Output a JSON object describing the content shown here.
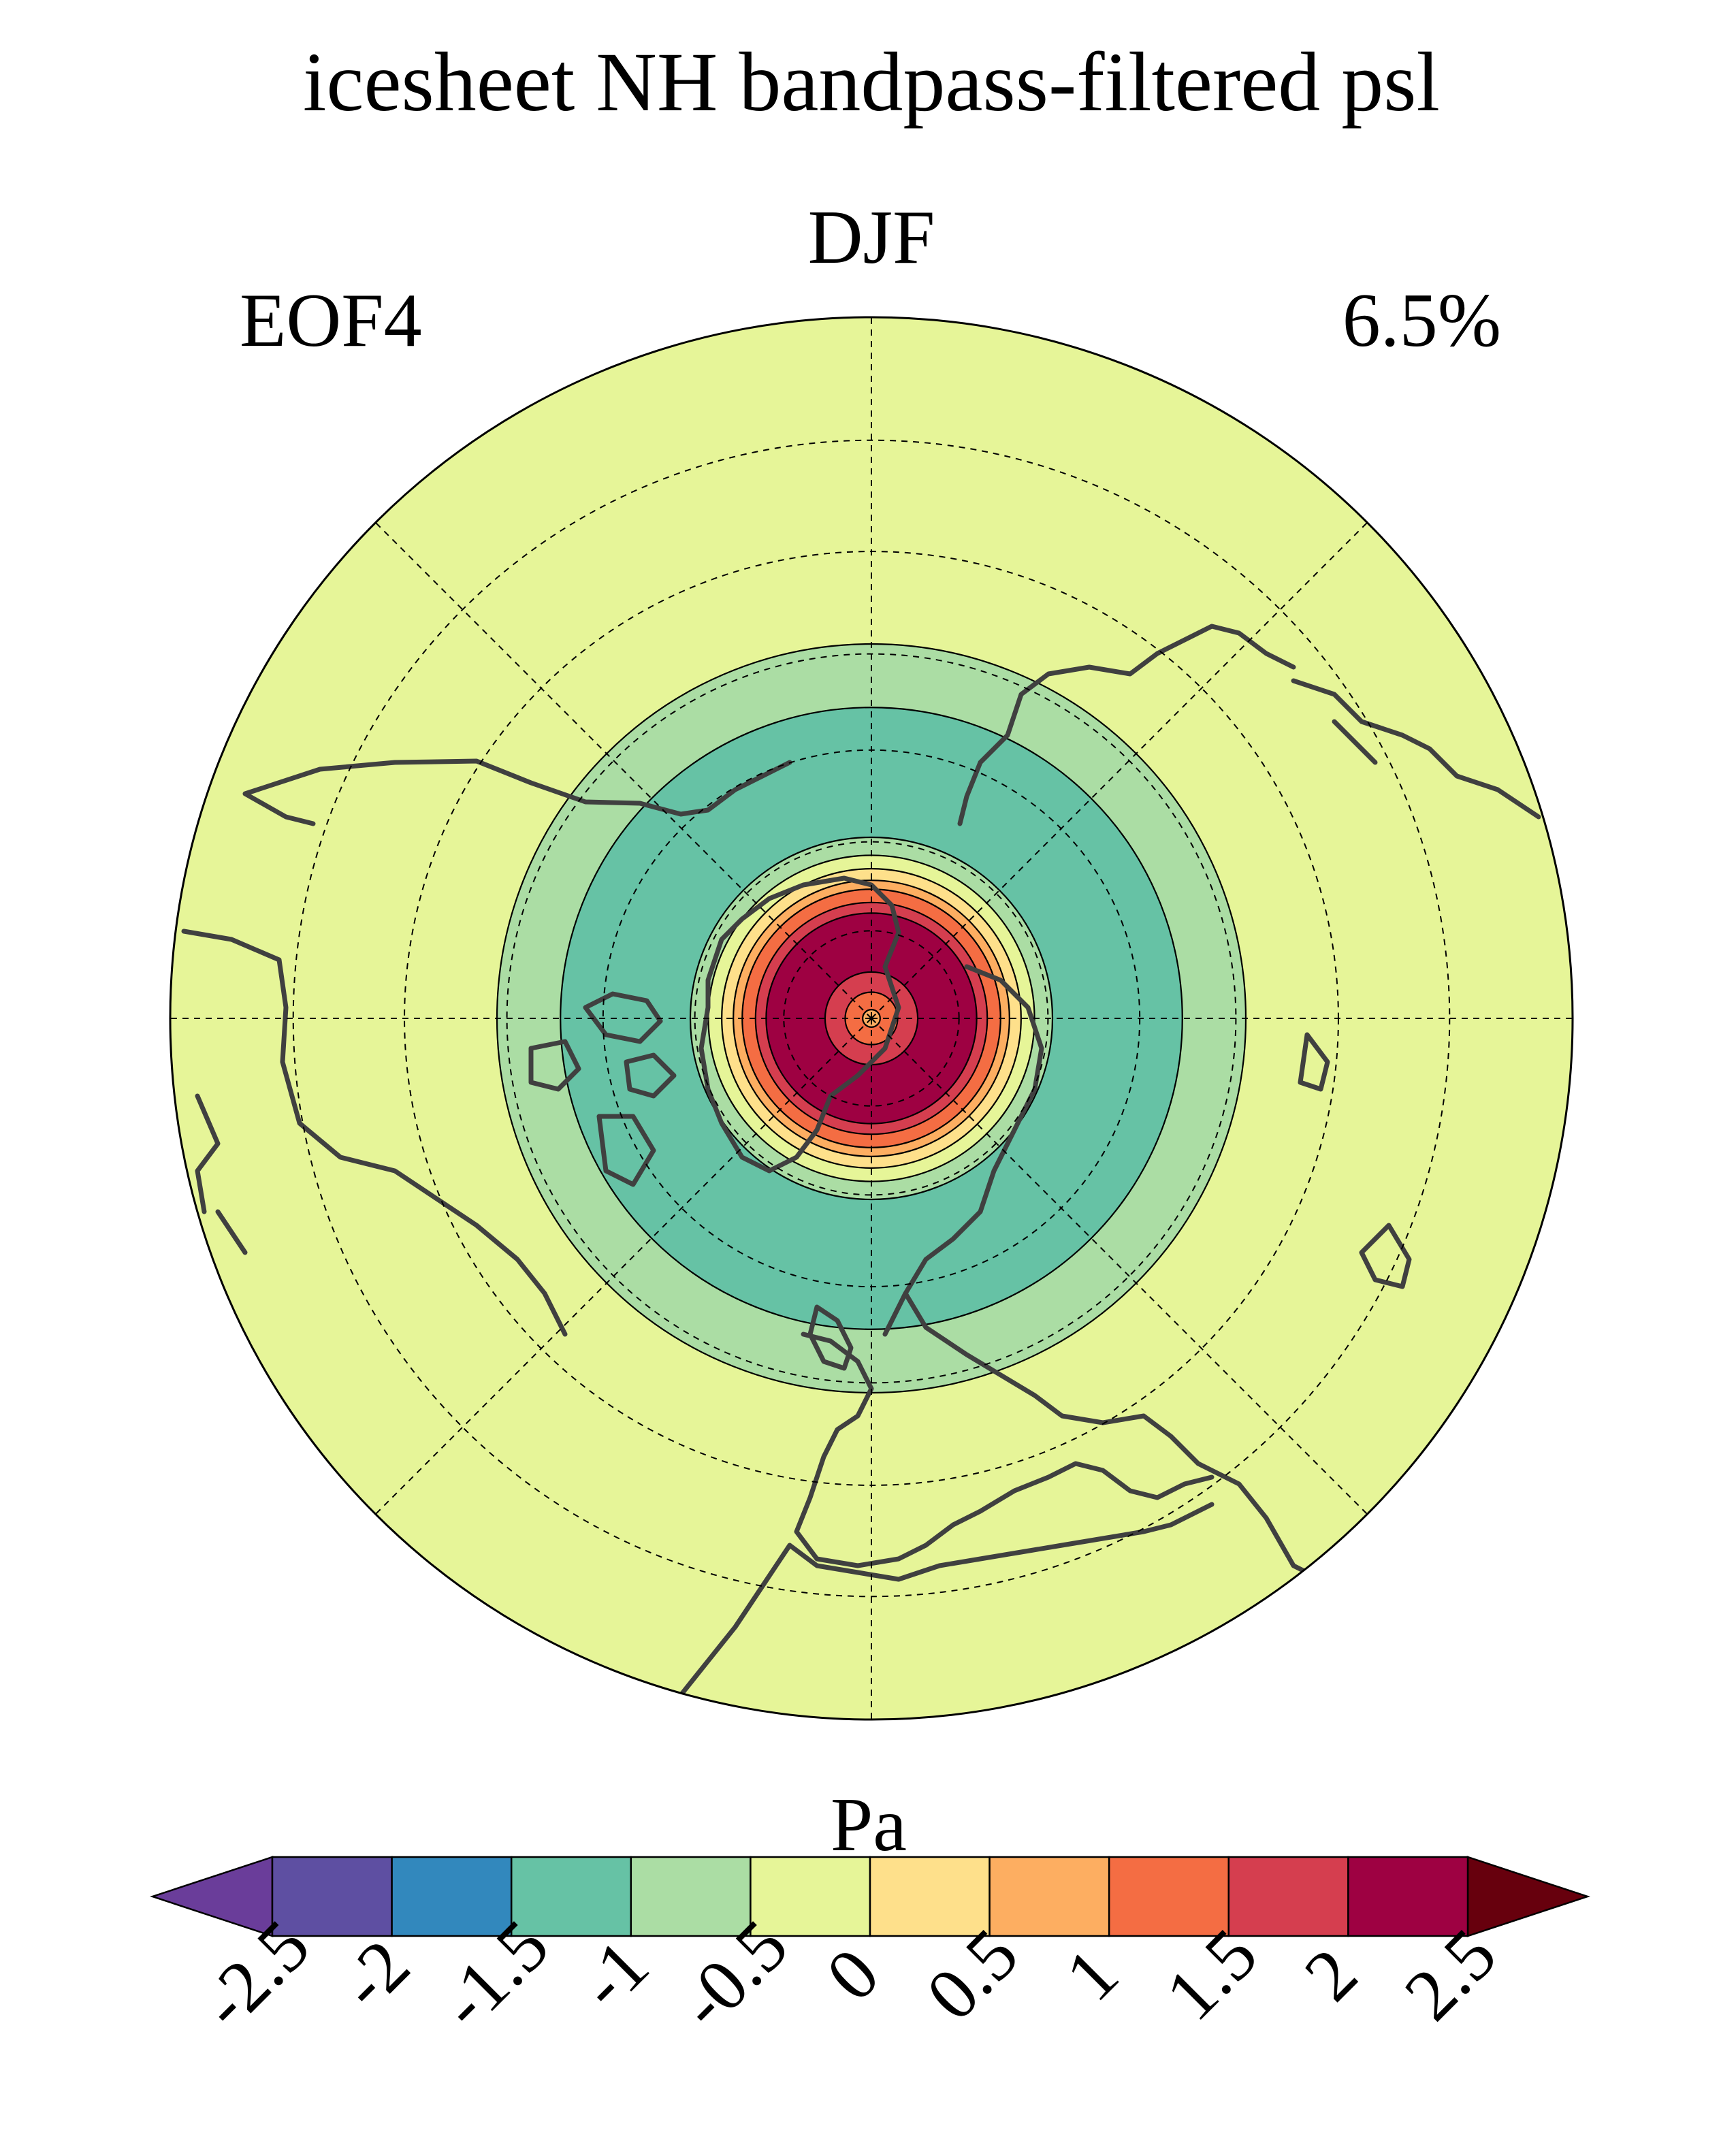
{
  "chart_data": {
    "type": "heatmap",
    "projection": "north-polar-stereographic",
    "title": "icesheet NH bandpass-filtered psl",
    "season": "DJF",
    "mode_label": "EOF4",
    "variance_explained": "6.5%",
    "units": "Pa",
    "lat_range": [
      20,
      90
    ],
    "graticule": {
      "parallels": [
        30,
        40,
        50,
        60,
        70,
        80
      ],
      "meridians": [
        0,
        45,
        90,
        135,
        180,
        225,
        270,
        315
      ]
    },
    "pattern": {
      "description": "zonally symmetric bands",
      "bands": [
        {
          "lat_from": 89.0,
          "lat_to": 90.0,
          "value": 0.75
        },
        {
          "lat_from": 87.0,
          "lat_to": 89.0,
          "value": 1.25
        },
        {
          "lat_from": 84.7,
          "lat_to": 87.0,
          "value": 1.75
        },
        {
          "lat_from": 78.0,
          "lat_to": 84.7,
          "value": 2.25
        },
        {
          "lat_from": 76.8,
          "lat_to": 78.0,
          "value": 1.75
        },
        {
          "lat_from": 75.3,
          "lat_to": 76.8,
          "value": 1.25
        },
        {
          "lat_from": 74.3,
          "lat_to": 75.3,
          "value": 0.75
        },
        {
          "lat_from": 73.0,
          "lat_to": 74.3,
          "value": 0.25
        },
        {
          "lat_from": 71.5,
          "lat_to": 73.0,
          "value": -0.25
        },
        {
          "lat_from": 69.5,
          "lat_to": 71.5,
          "value": -0.75
        },
        {
          "lat_from": 55.5,
          "lat_to": 69.5,
          "value": -1.25
        },
        {
          "lat_from": 49.0,
          "lat_to": 55.5,
          "value": -0.75
        },
        {
          "lat_from": 20.0,
          "lat_to": 49.0,
          "value": -0.25
        }
      ]
    },
    "colorbar": {
      "label": "Pa",
      "levels": [
        -2.5,
        -2,
        -1.5,
        -1,
        -0.5,
        0,
        0.5,
        1,
        1.5,
        2,
        2.5
      ],
      "tick_labels": [
        "-2.5",
        "-2",
        "-1.5",
        "-1",
        "-0.5",
        "0",
        "0.5",
        "1",
        "1.5",
        "2",
        "2.5"
      ],
      "colors": [
        "#5e4fa2",
        "#3288bd",
        "#66c2a5",
        "#abdda4",
        "#e6f598",
        "#fee08b",
        "#fdae61",
        "#f46d43",
        "#d53e4f",
        "#9e0142"
      ],
      "under_color": "#6a3d9a",
      "over_color": "#67000d",
      "extend": "both"
    }
  }
}
